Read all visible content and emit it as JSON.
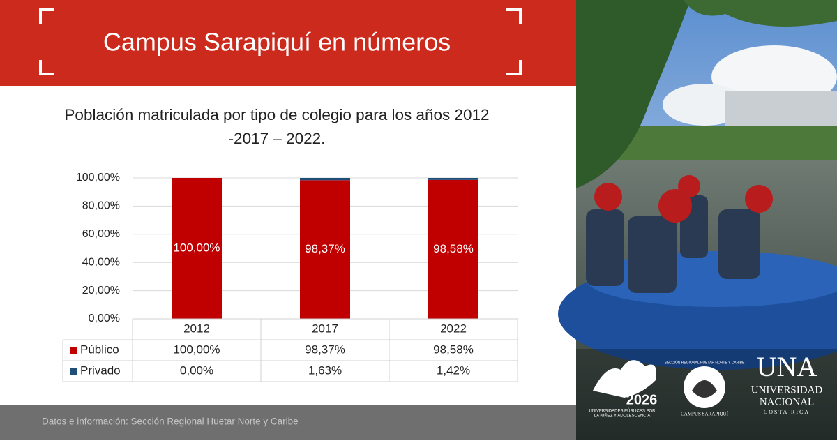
{
  "header": {
    "title": "Campus Sarapiquí en números"
  },
  "chart_data": {
    "type": "bar",
    "stacked": true,
    "title": "Población matriculada por tipo de colegio para los años 2012 -2017 – 2022.",
    "categories": [
      "2012",
      "2017",
      "2022"
    ],
    "series": [
      {
        "name": "Público",
        "color": "#c00000",
        "values": [
          100,
          98.37,
          98.58
        ],
        "value_labels": [
          "100,00%",
          "98,37%",
          "98,58%"
        ]
      },
      {
        "name": "Privado",
        "color": "#1f4e79",
        "values": [
          0,
          1.63,
          1.42
        ],
        "value_labels": [
          "0,00%",
          "1,63%",
          "1,42%"
        ]
      }
    ],
    "ylim": [
      0,
      100
    ],
    "yticks": [
      {
        "value": 0,
        "label": "0,00%"
      },
      {
        "value": 20,
        "label": "20,00%"
      },
      {
        "value": 40,
        "label": "40,00%"
      },
      {
        "value": 60,
        "label": "60,00%"
      },
      {
        "value": 80,
        "label": "80,00%"
      },
      {
        "value": 100,
        "label": "100,00%"
      }
    ],
    "grid": true,
    "data_table": true
  },
  "footer": {
    "text": "Datos e información: Sección Regional Huetar Norte y Caribe"
  },
  "logos": {
    "campaign": {
      "year": "2026",
      "line1": "UNIVERSIDADES PÚBLICAS POR",
      "line2": "LA NIÑEZ Y ADOLESCENCIA"
    },
    "campus": {
      "arc_text": "SECCIÓN REGIONAL HUETAR NORTE Y CARIBE",
      "name": "CAMPUS SARAPIQUÍ"
    },
    "una": {
      "acronym": "UNA",
      "line1": "UNIVERSIDAD",
      "line2": "NACIONAL",
      "country": "COSTA RICA"
    }
  }
}
